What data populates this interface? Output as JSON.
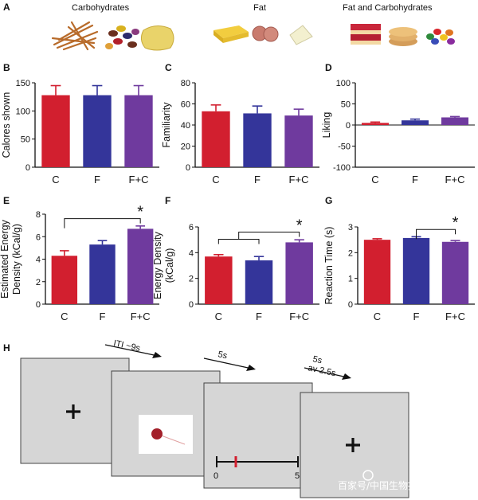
{
  "panel_labels": [
    "A",
    "B",
    "C",
    "D",
    "E",
    "F",
    "G",
    "H"
  ],
  "foods": {
    "carbohydrates_label": "Carbohydrates",
    "fat_label": "Fat",
    "fat_carbohydrates_label": "Fat and Carbohydrates"
  },
  "colors": {
    "C": "#d21f2f",
    "F": "#34359a",
    "F+C": "#6f3a9e"
  },
  "chart_data": [
    {
      "id": "B",
      "type": "bar",
      "categories": [
        "C",
        "F",
        "F+C"
      ],
      "values": [
        128,
        128,
        128
      ],
      "errors": [
        17,
        17,
        17
      ],
      "ylabel": "Calores shown",
      "ylim": [
        0,
        150
      ],
      "yticks": [
        0,
        50,
        100,
        150
      ],
      "significance": []
    },
    {
      "id": "C",
      "type": "bar",
      "categories": [
        "C",
        "F",
        "F+C"
      ],
      "values": [
        53,
        51,
        49
      ],
      "errors": [
        6,
        7,
        6
      ],
      "ylabel": "Familiarity",
      "ylim": [
        0,
        80
      ],
      "yticks": [
        0,
        20,
        40,
        60,
        80
      ],
      "significance": []
    },
    {
      "id": "D",
      "type": "bar",
      "categories": [
        "C",
        "F",
        "F+C"
      ],
      "values": [
        5,
        11,
        18
      ],
      "errors": [
        2,
        3,
        2
      ],
      "ylabel": "Liking",
      "ylim": [
        -100,
        100
      ],
      "yticks": [
        -100,
        -50,
        0,
        50,
        100
      ],
      "zero_line": true,
      "significance": []
    },
    {
      "id": "E",
      "type": "bar",
      "categories": [
        "C",
        "F",
        "F+C"
      ],
      "values": [
        4.3,
        5.3,
        6.7
      ],
      "errors": [
        0.45,
        0.35,
        0.25
      ],
      "ylabel": "Estimated Energy Density (kCal/g)",
      "ylabel_lines": [
        "Estimated Energy",
        "Density (kCal/g)"
      ],
      "ylim": [
        0,
        8
      ],
      "yticks": [
        0,
        2,
        4,
        6,
        8
      ],
      "significance": [
        {
          "type": "simple",
          "from": 0,
          "to": 2,
          "y": 7.6,
          "label": "*"
        }
      ]
    },
    {
      "id": "F",
      "type": "bar",
      "categories": [
        "C",
        "F",
        "F+C"
      ],
      "values": [
        3.7,
        3.4,
        4.8
      ],
      "errors": [
        0.15,
        0.3,
        0.2
      ],
      "ylabel": "Energy Density (kCal/g)",
      "ylabel_lines": [
        "Energy Density",
        "(kCal/g)"
      ],
      "ylim": [
        0,
        6
      ],
      "yticks": [
        0,
        2,
        4,
        6
      ],
      "significance": [
        {
          "type": "group",
          "from": [
            0,
            1
          ],
          "to": 2,
          "y": 5.6,
          "label": "*"
        }
      ]
    },
    {
      "id": "G",
      "type": "bar",
      "categories": [
        "C",
        "F",
        "F+C"
      ],
      "values": [
        2.5,
        2.57,
        2.42
      ],
      "errors": [
        0.04,
        0.05,
        0.05
      ],
      "ylabel": "Reaction Time (s)",
      "ylim": [
        0,
        3
      ],
      "yticks": [
        0,
        1,
        2,
        3
      ],
      "significance": [
        {
          "type": "simple",
          "from": 1,
          "to": 2,
          "y": 2.9,
          "label": "*"
        }
      ]
    }
  ],
  "timeline": {
    "arrow1": "ITI ~9s",
    "arrow2": "5s",
    "arrow3_line1": "5s",
    "arrow3_line2": "av 2.5s",
    "fixation": "+",
    "scale_min": "0",
    "scale_max": "5"
  },
  "watermark": "百家号/中国生物技术网"
}
